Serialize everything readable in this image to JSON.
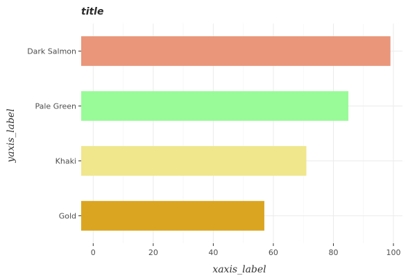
{
  "chart_data": {
    "type": "bar",
    "orientation": "horizontal",
    "title": "title",
    "xlabel": "xaxis_label",
    "ylabel": "yaxis_label",
    "categories": [
      "Dark Salmon",
      "Pale Green",
      "Khaki",
      "Gold"
    ],
    "values": [
      99,
      85,
      71,
      57
    ],
    "colors": [
      "#e9967a",
      "#98fb98",
      "#f0e68c",
      "#daa520"
    ],
    "xlim": [
      -4,
      103
    ],
    "xticks": [
      0,
      20,
      40,
      60,
      80,
      100
    ],
    "xtick_labels": [
      "0",
      "20",
      "40",
      "60",
      "80",
      "100"
    ],
    "grid": true,
    "legend": "none"
  }
}
